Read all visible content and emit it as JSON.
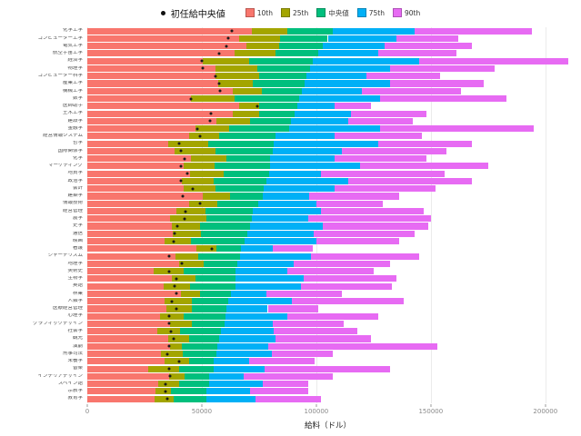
{
  "legend": {
    "dot_label": "初任給中央値",
    "items": [
      {
        "key": "p10",
        "label": "10th",
        "color": "#F8766D"
      },
      {
        "key": "p25",
        "label": "25th",
        "color": "#A3A500"
      },
      {
        "key": "median",
        "label": "中央値",
        "color": "#00BF7D"
      },
      {
        "key": "p75",
        "label": "75th",
        "color": "#00B0F6"
      },
      {
        "key": "p90",
        "label": "90th",
        "color": "#E76BF3"
      }
    ]
  },
  "chart_data": {
    "type": "bar",
    "orientation": "horizontal",
    "stacked": true,
    "xlabel": "給料（ドル）",
    "xlim": [
      0,
      210000
    ],
    "x_ticks": [
      {
        "value": 0,
        "label": "0"
      },
      {
        "value": 50000,
        "label": "50000"
      },
      {
        "value": 100000,
        "label": "100000"
      },
      {
        "value": 150000,
        "label": "150000"
      },
      {
        "value": 200000,
        "label": "200000"
      }
    ],
    "series_keys": [
      "p10",
      "p25",
      "median",
      "p75",
      "p90"
    ],
    "dot_key": "start_median",
    "dot_color": "#1a1a1a",
    "rows": [
      {
        "major": "化学工学",
        "start_median": 63200,
        "p10": 71900,
        "p25": 87300,
        "median": 107000,
        "p75": 143000,
        "p90": 194000
      },
      {
        "major": "コンピューター工学",
        "start_median": 61400,
        "p10": 66100,
        "p25": 84100,
        "median": 105000,
        "p75": 135000,
        "p90": 162000
      },
      {
        "major": "電気工学",
        "start_median": 60900,
        "p10": 69300,
        "p25": 83800,
        "median": 103000,
        "p75": 130000,
        "p90": 168000
      },
      {
        "major": "航空宇宙工学",
        "start_median": 57700,
        "p10": 64300,
        "p25": 82100,
        "median": 101000,
        "p75": 127000,
        "p90": 161000
      },
      {
        "major": "経済学",
        "start_median": 50100,
        "p10": 50600,
        "p25": 70600,
        "median": 98600,
        "p75": 145000,
        "p90": 210000
      },
      {
        "major": "物理学",
        "start_median": 50300,
        "p10": 56000,
        "p25": 74200,
        "median": 97300,
        "p75": 132000,
        "p90": 178000
      },
      {
        "major": "コンピューター科学",
        "start_median": 55900,
        "p10": 56000,
        "p25": 74900,
        "median": 95500,
        "p75": 122000,
        "p90": 154000
      },
      {
        "major": "産業工学",
        "start_median": 57700,
        "p10": 57100,
        "p25": 72300,
        "median": 94700,
        "p75": 132000,
        "p90": 173000
      },
      {
        "major": "機械工学",
        "start_median": 57900,
        "p10": 63700,
        "p25": 76200,
        "median": 93600,
        "p75": 120000,
        "p90": 163000
      },
      {
        "major": "数学",
        "start_median": 45400,
        "p10": 45200,
        "p25": 64200,
        "median": 92400,
        "p75": 128000,
        "p90": 183000
      },
      {
        "major": "医師助手",
        "start_median": 74300,
        "p10": 66400,
        "p25": 75200,
        "median": 91700,
        "p75": 108000,
        "p90": 124000
      },
      {
        "major": "土木工学",
        "start_median": 53900,
        "p10": 63400,
        "p25": 75100,
        "median": 90500,
        "p75": 115000,
        "p90": 148000
      },
      {
        "major": "建設学",
        "start_median": 53700,
        "p10": 56300,
        "p25": 71100,
        "median": 88900,
        "p75": 114000,
        "p90": 142000
      },
      {
        "major": "金融学",
        "start_median": 47900,
        "p10": 47200,
        "p25": 62100,
        "median": 88300,
        "p75": 128000,
        "p90": 195000
      },
      {
        "major": "経営情報システム",
        "start_median": 49200,
        "p10": 44500,
        "p25": 57600,
        "median": 82300,
        "p75": 108000,
        "p90": 146000
      },
      {
        "major": "哲学",
        "start_median": 39900,
        "p10": 35500,
        "p25": 52800,
        "median": 81200,
        "p75": 127000,
        "p90": 168000
      },
      {
        "major": "国際関係学",
        "start_median": 40900,
        "p10": 38200,
        "p25": 56000,
        "median": 80900,
        "p75": 111000,
        "p90": 157000
      },
      {
        "major": "化学",
        "start_median": 42600,
        "p10": 45300,
        "p25": 60700,
        "median": 79900,
        "p75": 108000,
        "p90": 148000
      },
      {
        "major": "マーケティング",
        "start_median": 40800,
        "p10": 42100,
        "p25": 55600,
        "median": 79600,
        "p75": 119000,
        "p90": 175000
      },
      {
        "major": "地質学",
        "start_median": 43500,
        "p10": 45000,
        "p25": 59600,
        "median": 79500,
        "p75": 102000,
        "p90": 156000
      },
      {
        "major": "政治学",
        "start_median": 40800,
        "p10": 41200,
        "p25": 55300,
        "median": 78200,
        "p75": 114000,
        "p90": 168000
      },
      {
        "major": "会計",
        "start_median": 46000,
        "p10": 42200,
        "p25": 56100,
        "median": 77100,
        "p75": 108000,
        "p90": 152000
      },
      {
        "major": "建築学",
        "start_median": 41600,
        "p10": 50600,
        "p25": 62200,
        "median": 76800,
        "p75": 97000,
        "p90": 136000
      },
      {
        "major": "情報技術",
        "start_median": 49100,
        "p10": 44500,
        "p25": 56700,
        "median": 74800,
        "p75": 100000,
        "p90": 129000
      },
      {
        "major": "経営管理",
        "start_median": 43000,
        "p10": 38800,
        "p25": 51500,
        "median": 72100,
        "p75": 102000,
        "p90": 147000
      },
      {
        "major": "農学",
        "start_median": 42600,
        "p10": 36300,
        "p25": 52100,
        "median": 71900,
        "p75": 96300,
        "p90": 150000
      },
      {
        "major": "史学",
        "start_median": 39200,
        "p10": 37000,
        "p25": 49200,
        "median": 71000,
        "p75": 103000,
        "p90": 149000
      },
      {
        "major": "通信",
        "start_median": 38100,
        "p10": 37500,
        "p25": 49700,
        "median": 70000,
        "p75": 98800,
        "p90": 143000
      },
      {
        "major": "映画",
        "start_median": 37900,
        "p10": 33900,
        "p25": 45100,
        "median": 68500,
        "p75": 100000,
        "p90": 136000
      },
      {
        "major": "看護",
        "start_median": 54200,
        "p10": 47600,
        "p25": 56400,
        "median": 67000,
        "p75": 80900,
        "p90": 98300
      },
      {
        "major": "ジャーナリズム",
        "start_median": 35600,
        "p10": 38400,
        "p25": 48300,
        "median": 66700,
        "p75": 97700,
        "p90": 145000
      },
      {
        "major": "地理学",
        "start_median": 41200,
        "p10": 40000,
        "p25": 50800,
        "median": 65500,
        "p75": 90000,
        "p90": 132000
      },
      {
        "major": "美術史",
        "start_median": 35800,
        "p10": 28800,
        "p25": 42200,
        "median": 64900,
        "p75": 87400,
        "p90": 125000
      },
      {
        "major": "生物学",
        "start_median": 38800,
        "p10": 36900,
        "p25": 47400,
        "median": 64800,
        "p75": 94500,
        "p90": 135000
      },
      {
        "major": "英語",
        "start_median": 38000,
        "p10": 33400,
        "p25": 44800,
        "median": 64700,
        "p75": 93200,
        "p90": 133000
      },
      {
        "major": "林業",
        "start_median": 39100,
        "p10": 41000,
        "p25": 49300,
        "median": 62600,
        "p75": 78200,
        "p90": 111000
      },
      {
        "major": "人類学",
        "start_median": 36800,
        "p10": 33800,
        "p25": 45500,
        "median": 61500,
        "p75": 89300,
        "p90": 138000
      },
      {
        "major": "医療経営管理",
        "start_median": 38800,
        "p10": 34600,
        "p25": 45600,
        "median": 60600,
        "p75": 78800,
        "p90": 101000
      },
      {
        "major": "心理学",
        "start_median": 35900,
        "p10": 31600,
        "p25": 42100,
        "median": 60400,
        "p75": 87500,
        "p90": 127000
      },
      {
        "major": "グラフィックデザイン",
        "start_median": 35700,
        "p10": 36000,
        "p25": 45500,
        "median": 59800,
        "p75": 80800,
        "p90": 112000
      },
      {
        "major": "社会学",
        "start_median": 36500,
        "p10": 30700,
        "p25": 40400,
        "median": 58200,
        "p75": 81200,
        "p90": 118000
      },
      {
        "major": "観光",
        "start_median": 37800,
        "p10": 35500,
        "p25": 44500,
        "median": 57500,
        "p75": 82300,
        "p90": 124000
      },
      {
        "major": "演劇",
        "start_median": 35900,
        "p10": 36300,
        "p25": 41300,
        "median": 56600,
        "p75": 79100,
        "p90": 153000
      },
      {
        "major": "刑事司法",
        "start_median": 35000,
        "p10": 32200,
        "p25": 41600,
        "median": 56300,
        "p75": 80700,
        "p90": 107000
      },
      {
        "major": "栄養学",
        "start_median": 39900,
        "p10": 33900,
        "p25": 44500,
        "median": 55300,
        "p75": 70500,
        "p90": 99200
      },
      {
        "major": "音楽",
        "start_median": 35900,
        "p10": 26700,
        "p25": 40200,
        "median": 55000,
        "p75": 77300,
        "p90": 132000
      },
      {
        "major": "インテリアデザイン",
        "start_median": 36100,
        "p10": 35700,
        "p25": 42600,
        "median": 53200,
        "p75": 68200,
        "p90": 107000
      },
      {
        "major": "スペイン語",
        "start_median": 34000,
        "p10": 31000,
        "p25": 40000,
        "median": 53100,
        "p75": 76800,
        "p90": 96400
      },
      {
        "major": "宗教学",
        "start_median": 34100,
        "p10": 29700,
        "p25": 36500,
        "median": 52000,
        "p75": 70900,
        "p90": 96400
      },
      {
        "major": "教育学",
        "start_median": 34900,
        "p10": 29300,
        "p25": 37900,
        "median": 52000,
        "p75": 73400,
        "p90": 102000
      }
    ]
  }
}
